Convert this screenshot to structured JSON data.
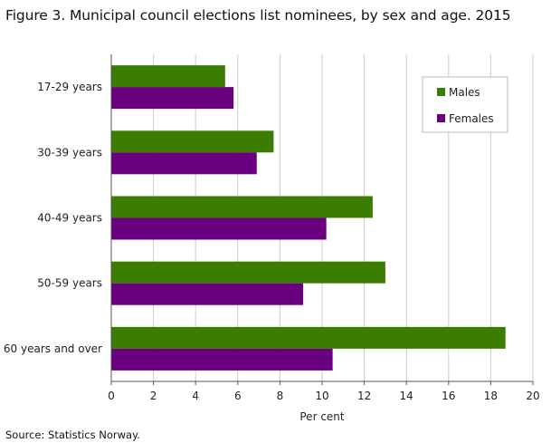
{
  "title": "Figure 3. Municipal council elections list nominees, by sex and age. 2015",
  "source": "Source: Statistics Norway.",
  "colors": {
    "males": "#3a7d00",
    "females": "#6a007f",
    "grid": "#cccccc",
    "axis": "#555555",
    "legend_border": "#bbbbbb"
  },
  "chart_data": {
    "type": "bar",
    "orientation": "horizontal",
    "title": "Figure 3. Municipal council elections list nominees, by sex and age. 2015",
    "xlabel": "Per cent",
    "ylabel": "",
    "xlim": [
      0,
      20
    ],
    "xticks": [
      "0",
      "2",
      "4",
      "6",
      "8",
      "10",
      "12",
      "14",
      "16",
      "18",
      "20"
    ],
    "categories": [
      "17-29 years",
      "30-39 years",
      "40-49 years",
      "50-59 years",
      "60 years and over"
    ],
    "series": [
      {
        "name": "Males",
        "color": "#3a7d00",
        "values": [
          5.4,
          7.7,
          12.4,
          13.0,
          18.7
        ]
      },
      {
        "name": "Females",
        "color": "#6a007f",
        "values": [
          5.8,
          6.9,
          10.2,
          9.1,
          10.5
        ]
      }
    ],
    "grid": "vertical",
    "legend": {
      "position": "top-right",
      "entries": [
        "Males",
        "Females"
      ]
    }
  }
}
